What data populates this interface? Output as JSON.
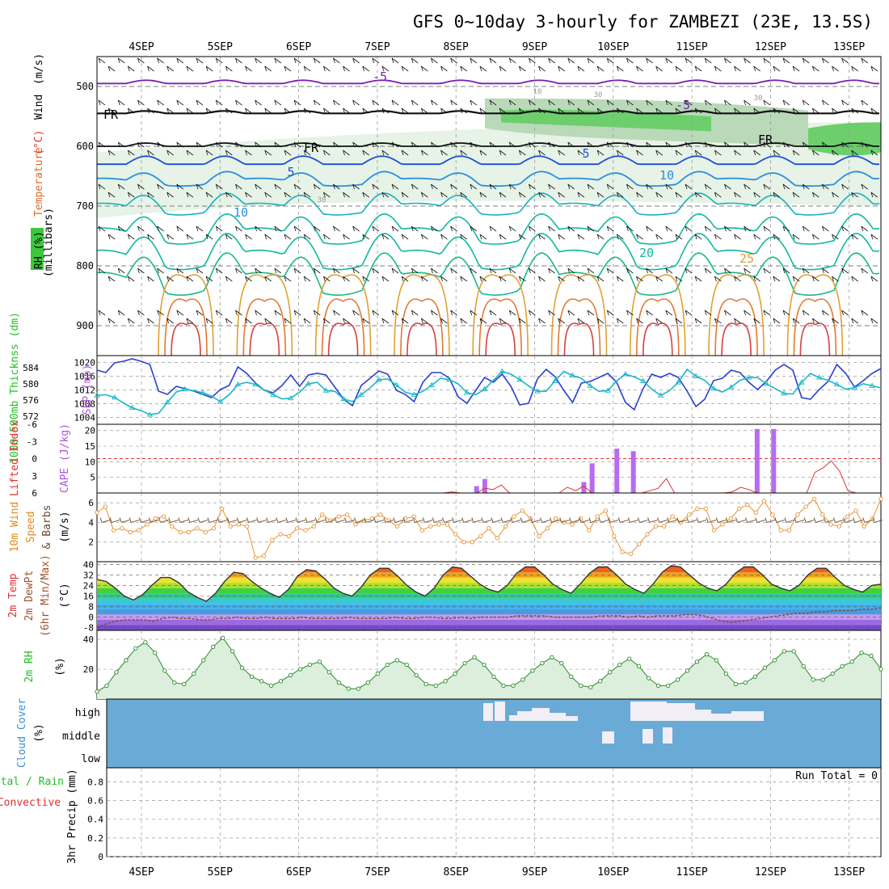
{
  "title": "GFS 0~10day 3-hourly for ZAMBEZI (23E, 13.5S)",
  "day_labels": [
    "4SEP",
    "5SEP",
    "6SEP",
    "7SEP",
    "8SEP",
    "9SEP",
    "10SEP",
    "11SEP",
    "12SEP",
    "13SEP"
  ],
  "colors": {
    "grid": "#999999",
    "frame": "#000000",
    "green_label": "#1fbf1f",
    "red_label": "#e03030",
    "orange_label": "#e08a1a",
    "blue_label": "#3a8fd6",
    "purple_label": "#b050e0",
    "cloud_bg": "#6aaad6"
  },
  "chart_data": [
    {
      "type": "heatmap",
      "panel": "upper-air",
      "ylabel_parts": [
        "RH (%)",
        "Temperature",
        "(°C)",
        "Wind",
        "(m/s)"
      ],
      "yunit": "(millibars)",
      "yticks": [
        500,
        600,
        700,
        800,
        900
      ],
      "ylim": [
        1000,
        450
      ],
      "contour_labels": [
        "-5",
        "-5",
        "5",
        "5",
        "10",
        "10",
        "20",
        "25",
        "FR",
        "FR",
        "FR",
        "10",
        "30",
        "30",
        "30"
      ]
    },
    {
      "type": "line",
      "panel": "thickness-slp",
      "ylabel_left": "1000-500mb Thicknss (dm)",
      "ylabel_right": "SLP (mb)",
      "yticks_thickness": [
        572,
        576,
        580,
        584
      ],
      "yticks_slp": [
        1004,
        1008,
        1012,
        1016,
        1020
      ],
      "series": [
        {
          "name": "1000-500mb Thicknss (dm)",
          "color": "#2a40d0",
          "values": [
            583.4,
            582.8,
            585.2,
            585.6,
            586.2,
            585.6,
            584.8,
            578.2,
            577.4,
            579.4,
            578.8,
            578.2,
            577.4,
            576.6,
            578.6,
            579.6,
            584.2,
            582.6,
            580.2,
            578.4,
            577.8,
            579.6,
            582.2,
            579.4,
            582.2,
            582.6,
            582.2,
            579.2,
            576.2,
            574.6,
            579.6,
            581.4,
            583.2,
            582.4,
            578.4,
            577.4,
            575.6,
            580.4,
            582.8,
            582.8,
            581.4,
            576.8,
            575.2,
            578.4,
            581.6,
            580.4,
            582.4,
            579.4,
            574.8,
            575.2,
            581.2,
            583.6,
            581.8,
            578.4,
            575.4,
            580.2,
            580.6,
            581.6,
            582.6,
            580.4,
            575.4,
            573.6,
            578.8,
            582.4,
            581.6,
            582.6,
            581.6,
            578.2,
            574.4,
            576.2,
            580.8,
            581.4,
            583.4,
            582.8,
            580.4,
            578.6,
            580.6,
            583.4,
            584.8,
            583.4,
            576.6,
            576.2,
            578.6,
            580.6,
            584.8,
            582.6,
            579.2,
            580.8,
            582.6,
            583.8
          ]
        },
        {
          "name": "SLP (mb)",
          "color": "#18b8c8",
          "values": [
            1010.4,
            1010.6,
            1009.8,
            1008.2,
            1006.8,
            1006.0,
            1004.8,
            1005.2,
            1008.4,
            1011.4,
            1012.2,
            1011.8,
            1011.2,
            1010.2,
            1008.6,
            1010.6,
            1013.6,
            1014.2,
            1013.6,
            1012.0,
            1010.6,
            1009.4,
            1009.6,
            1011.4,
            1013.8,
            1014.2,
            1011.8,
            1011.6,
            1009.4,
            1008.6,
            1010.6,
            1012.6,
            1015.0,
            1015.2,
            1013.4,
            1011.4,
            1010.6,
            1011.6,
            1013.4,
            1015.4,
            1015.0,
            1013.8,
            1011.2,
            1010.6,
            1012.2,
            1014.8,
            1017.4,
            1016.6,
            1015.0,
            1013.2,
            1011.6,
            1011.6,
            1014.6,
            1017.4,
            1016.2,
            1015.4,
            1013.2,
            1011.6,
            1011.8,
            1014.6,
            1016.6,
            1015.8,
            1014.6,
            1012.2,
            1010.4,
            1011.8,
            1014.2,
            1018.0,
            1016.0,
            1014.8,
            1012.4,
            1011.4,
            1012.8,
            1014.8,
            1015.6,
            1015.6,
            1013.8,
            1012.4,
            1011.0,
            1010.8,
            1014.2,
            1016.8,
            1015.6,
            1014.8,
            1013.6,
            1012.2,
            1012.6,
            1013.8,
            1013.2,
            1012.6
          ]
        }
      ]
    },
    {
      "type": "bar",
      "panel": "cape-li",
      "ylabel_left": "Lifted Index",
      "ylabel_right": "CAPE (J/kg)",
      "yticks_cape": [
        5,
        10,
        15,
        20
      ],
      "yticks_li": [
        "6",
        "3",
        "0",
        "-3",
        "-6"
      ],
      "series": [
        {
          "name": "CAPE (J/kg)",
          "color": "#b66cf0",
          "bars": [
            [
              46,
              2.2
            ],
            [
              47,
              4.5
            ],
            [
              59,
              3.5
            ],
            [
              60,
              9.5
            ],
            [
              63,
              14.2
            ],
            [
              65,
              13.4
            ],
            [
              80,
              20.5
            ],
            [
              82,
              20.5
            ]
          ]
        },
        {
          "name": "Lifted Index",
          "color": "#e03030",
          "values": [
            6.8,
            6.8,
            6.8,
            6.8,
            6.8,
            6.8,
            6.8,
            6.8,
            6.8,
            6.8,
            6.8,
            6.8,
            6.8,
            6.8,
            6.8,
            6.8,
            6.8,
            6.8,
            6.8,
            6.8,
            6.8,
            6.8,
            6.8,
            6.8,
            6.8,
            6.8,
            6.8,
            6.8,
            6.8,
            6.8,
            6.8,
            6.8,
            6.8,
            6.8,
            6.8,
            6.8,
            6.8,
            6.8,
            6.8,
            6.8,
            6.8,
            6.8,
            6.8,
            5.8,
            6.8,
            6.8,
            6.8,
            5.2,
            5.4,
            4.6,
            6.8,
            6.8,
            6.8,
            6.8,
            6.8,
            6.8,
            6.8,
            5.0,
            5.6,
            4.8,
            6.8,
            6.8,
            6.8,
            6.8,
            6.8,
            6.8,
            6.8,
            5.6,
            5.2,
            3.5,
            6.8,
            6.8,
            6.8,
            6.8,
            6.8,
            6.8,
            6.8,
            5.8,
            5.0,
            5.4,
            6.8,
            6.8,
            6.8,
            6.8,
            6.8,
            6.8,
            6.8,
            2.4,
            1.6,
            0.4,
            2.2,
            5.6,
            6.8,
            6.8,
            6.8,
            6.8
          ]
        },
        {
          "name": "zero line",
          "color": "#e03030",
          "values": [
            0
          ]
        }
      ]
    },
    {
      "type": "line",
      "panel": "wind10m",
      "ylabel": "10m Wind Speed & Barbs (m/s)",
      "ylabel_parts": [
        "10m Wind",
        "Speed",
        "& Barbs",
        "(m/s)"
      ],
      "yticks": [
        2,
        4,
        6
      ],
      "series": [
        {
          "name": "10m Wind Speed",
          "color": "#e89230",
          "values": [
            5.0,
            5.6,
            3.2,
            3.4,
            3.0,
            3.2,
            3.8,
            4.4,
            4.6,
            3.6,
            3.0,
            3.0,
            3.4,
            3.0,
            3.4,
            5.4,
            3.6,
            3.8,
            3.6,
            0.4,
            0.6,
            2.2,
            2.8,
            2.6,
            3.4,
            3.2,
            3.6,
            4.8,
            4.2,
            4.6,
            4.8,
            3.8,
            4.2,
            4.4,
            4.8,
            4.2,
            3.6,
            4.4,
            4.6,
            3.2,
            3.6,
            3.8,
            3.8,
            2.8,
            2.0,
            2.0,
            2.6,
            3.4,
            2.4,
            3.6,
            4.6,
            5.2,
            4.4,
            2.6,
            3.4,
            4.4,
            4.0,
            3.8,
            4.4,
            3.2,
            4.6,
            5.2,
            2.6,
            1.0,
            0.8,
            1.8,
            2.8,
            3.6,
            3.6,
            4.6,
            4.0,
            4.8,
            5.4,
            5.4,
            3.2,
            3.8,
            4.4,
            5.4,
            5.8,
            5.0,
            6.2,
            4.8,
            3.2,
            3.2,
            4.8,
            5.6,
            6.4,
            4.8,
            3.8,
            3.6,
            4.6,
            5.2,
            3.6,
            4.4,
            6.4
          ]
        },
        {
          "name": "10m Wind Barbs",
          "color": "#6b4b2a",
          "values": [
            4.0,
            4.0,
            4.0,
            4.0,
            4.0,
            4.0,
            4.0,
            4.0,
            4.0,
            4.0,
            4.0,
            4.0,
            4.0,
            4.0,
            4.0,
            4.0,
            4.0,
            4.0,
            4.0,
            4.0
          ]
        }
      ]
    },
    {
      "type": "area",
      "panel": "temp2m",
      "ylabel_parts": [
        "2m Temp",
        "2m DewPt",
        "(6hr Min/Max)",
        "(°C)"
      ],
      "yticks": [
        -8,
        0,
        8,
        16,
        24,
        32,
        40
      ],
      "series": [
        {
          "name": "2m Temp",
          "color": "#333333",
          "values": [
            28.5,
            27,
            22,
            16,
            13,
            17,
            24,
            30,
            30,
            26,
            19,
            15,
            12,
            18,
            27,
            34,
            33,
            27,
            22,
            18,
            15,
            21,
            31,
            36,
            35,
            29,
            22,
            18,
            16,
            23,
            32,
            37,
            37,
            31,
            24,
            19,
            16,
            22,
            32,
            38,
            37,
            31,
            25,
            21,
            19,
            24,
            33,
            38,
            38,
            32,
            25,
            21,
            18,
            25,
            33,
            38,
            38,
            32,
            25,
            21,
            18,
            25,
            34,
            39,
            38,
            32,
            26,
            22,
            20,
            25,
            33,
            38,
            38,
            32,
            25,
            22,
            20,
            24,
            32,
            37,
            37,
            30,
            24,
            21,
            19,
            24,
            25
          ]
        },
        {
          "name": "2m DewPt",
          "color": "#7a4a2a",
          "values": [
            -8,
            -5,
            -3,
            -2,
            -2,
            -2,
            -3,
            -1,
            0,
            -1,
            -1,
            -2,
            -2,
            -1,
            -1,
            0,
            -1,
            -1,
            0,
            -1,
            -1,
            -1,
            0,
            -1,
            -1,
            -1,
            -1,
            0,
            -1,
            -1,
            -1,
            -1,
            0,
            -1,
            -1,
            0,
            0,
            -1,
            -1,
            0,
            -1,
            0,
            0,
            0,
            0,
            1,
            1,
            1,
            1,
            0,
            0,
            0,
            0,
            0,
            1,
            1,
            1,
            0,
            1,
            0,
            1,
            1,
            1,
            2,
            2,
            1,
            -1,
            -3,
            -4,
            -3,
            -2,
            -1,
            0,
            1,
            2,
            3,
            3,
            4,
            4,
            5,
            5,
            5,
            6,
            6,
            7
          ]
        }
      ]
    },
    {
      "type": "area",
      "panel": "rh2m",
      "ylabel": "2m RH (%)",
      "yticks": [
        20,
        40
      ],
      "series": [
        {
          "name": "2m RH",
          "color": "#2a8a2a",
          "values": [
            5,
            9,
            18,
            26,
            34,
            38,
            31,
            19,
            11,
            10,
            17,
            26,
            35,
            41,
            32,
            21,
            15,
            12,
            9,
            12,
            16,
            20,
            23,
            25,
            18,
            11,
            7,
            7,
            11,
            17,
            23,
            26,
            23,
            16,
            10,
            9,
            12,
            17,
            24,
            28,
            23,
            15,
            9,
            9,
            13,
            19,
            24,
            28,
            24,
            15,
            9,
            8,
            12,
            18,
            23,
            27,
            22,
            14,
            9,
            9,
            13,
            19,
            25,
            30,
            26,
            17,
            10,
            11,
            15,
            21,
            26,
            32,
            32,
            22,
            13,
            13,
            17,
            22,
            25,
            31,
            29,
            20
          ]
        }
      ]
    },
    {
      "type": "heatmap",
      "panel": "cloud",
      "ylabel": "Cloud Cover (%)",
      "row_labels": [
        "high",
        "middle",
        "low"
      ]
    },
    {
      "type": "bar",
      "panel": "precip",
      "ylabel_parts": [
        "Total / Rain",
        "Convective"
      ],
      "ylabel_axis": "3hr Precip (mm)",
      "yticks": [
        0,
        0.2,
        0.4,
        0.6,
        0.8
      ],
      "annotation": "Run Total = 0",
      "values": []
    }
  ]
}
